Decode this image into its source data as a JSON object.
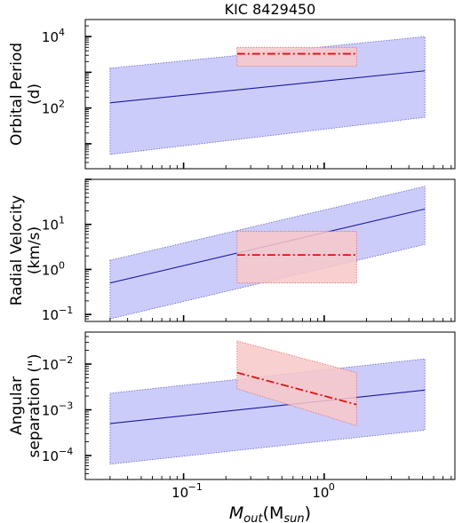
{
  "figure": {
    "title": "KIC 8429450",
    "xlabel_main": "M",
    "xlabel_sub1": "out",
    "xlabel_open": "(M",
    "xlabel_sub2": "sun",
    "xlabel_close": ")"
  },
  "colors": {
    "band_fill": "#ccccfa",
    "band_edge": "#6464c8",
    "model_line": "#1a1aa0",
    "obs_fill": "#f8c8c8",
    "obs_edge": "#e07070",
    "obs_line": "#e01010"
  },
  "chart_data": [
    {
      "type": "area",
      "title": "KIC 8429450",
      "ylabel_lines": [
        "Orbital Period",
        "(d)"
      ],
      "xlabel": "",
      "xscale": "log",
      "yscale": "log",
      "xlim": [
        0.02,
        8.5
      ],
      "ylim": [
        2,
        30000
      ],
      "yticks": [
        {
          "v": 100,
          "base": "10",
          "exp": "2"
        },
        {
          "v": 10000,
          "base": "10",
          "exp": "4"
        }
      ],
      "model": {
        "x": [
          0.03,
          5.2
        ],
        "center": [
          140,
          1100
        ],
        "lower": [
          5,
          55
        ],
        "upper": [
          1300,
          10000
        ]
      },
      "observed": {
        "x": [
          0.24,
          1.7
        ],
        "center": [
          3300,
          3300
        ],
        "lower": [
          1500,
          1500
        ],
        "upper": [
          5000,
          5000
        ]
      }
    },
    {
      "type": "area",
      "ylabel_lines": [
        "Radial Velocity",
        "(km/s)"
      ],
      "xlabel": "",
      "xscale": "log",
      "yscale": "log",
      "xlim": [
        0.02,
        8.5
      ],
      "ylim": [
        0.07,
        100
      ],
      "yticks": [
        {
          "v": 0.1,
          "base": "10",
          "exp": "−1"
        },
        {
          "v": 1,
          "base": "10",
          "exp": "0"
        },
        {
          "v": 10,
          "base": "10",
          "exp": "1"
        }
      ],
      "model": {
        "x": [
          0.03,
          5.2
        ],
        "center": [
          0.5,
          22
        ],
        "lower": [
          0.08,
          3.6
        ],
        "upper": [
          1.6,
          70
        ]
      },
      "observed": {
        "x": [
          0.24,
          1.7
        ],
        "center": [
          2.1,
          2.1
        ],
        "lower": [
          0.5,
          0.5
        ],
        "upper": [
          7,
          7
        ]
      }
    },
    {
      "type": "area",
      "ylabel_lines": [
        "Angular",
        "separation (\")"
      ],
      "xlabel": "",
      "xscale": "log",
      "yscale": "log",
      "xlim": [
        0.02,
        8.5
      ],
      "ylim": [
        3e-05,
        0.05
      ],
      "xticks": [
        {
          "v": 0.1,
          "base": "10",
          "exp": "−1"
        },
        {
          "v": 1,
          "base": "10",
          "exp": "0"
        }
      ],
      "yticks": [
        {
          "v": 0.0001,
          "base": "10",
          "exp": "−4"
        },
        {
          "v": 0.001,
          "base": "10",
          "exp": "−3"
        },
        {
          "v": 0.01,
          "base": "10",
          "exp": "−2"
        }
      ],
      "model": {
        "x": [
          0.03,
          5.2
        ],
        "center": [
          0.0005,
          0.0027
        ],
        "lower": [
          6.5e-05,
          0.00036
        ],
        "upper": [
          0.0023,
          0.013
        ]
      },
      "observed": {
        "x": [
          0.24,
          1.7
        ],
        "center": [
          0.0065,
          0.0013
        ],
        "lower": [
          0.0029,
          0.00045
        ],
        "upper": [
          0.032,
          0.0065
        ]
      }
    }
  ]
}
